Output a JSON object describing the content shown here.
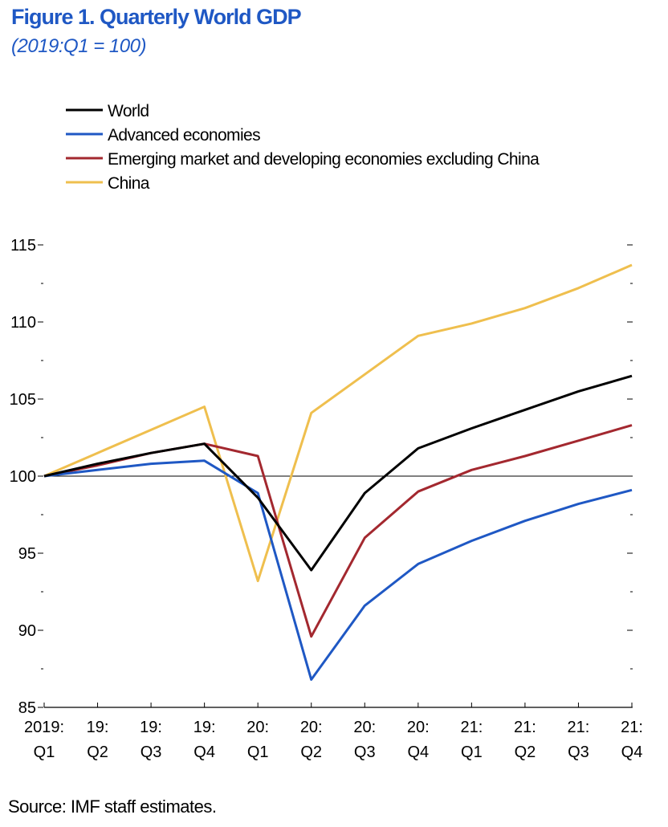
{
  "header": {
    "title": "Figure 1. Quarterly World GDP",
    "subtitle": "(2019:Q1 = 100)"
  },
  "footer": {
    "source": "Source: IMF staff estimates."
  },
  "chart_data": {
    "type": "line",
    "title": "Figure 1. Quarterly World GDP",
    "subtitle": "(2019:Q1 = 100)",
    "xlabel": "",
    "ylabel": "",
    "ylim": [
      85,
      115
    ],
    "yticks": [
      85,
      90,
      95,
      100,
      105,
      110,
      115
    ],
    "grid": false,
    "reference_line": 100,
    "legend_position": "top-left",
    "categories": [
      [
        "2019:",
        "Q1"
      ],
      [
        "19:",
        "Q2"
      ],
      [
        "19:",
        "Q3"
      ],
      [
        "19:",
        "Q4"
      ],
      [
        "20:",
        "Q1"
      ],
      [
        "20:",
        "Q2"
      ],
      [
        "20:",
        "Q3"
      ],
      [
        "20:",
        "Q4"
      ],
      [
        "21:",
        "Q1"
      ],
      [
        "21:",
        "Q2"
      ],
      [
        "21:",
        "Q3"
      ],
      [
        "21:",
        "Q4"
      ]
    ],
    "series": [
      {
        "name": "World",
        "color": "#000000",
        "values": [
          100,
          100.8,
          101.5,
          102.1,
          98.6,
          93.9,
          98.9,
          101.8,
          103.1,
          104.3,
          105.5,
          106.5
        ]
      },
      {
        "name": "Advanced economies",
        "color": "#1f58c4",
        "values": [
          100,
          100.4,
          100.8,
          101.0,
          98.9,
          86.8,
          91.6,
          94.3,
          95.8,
          97.1,
          98.2,
          99.1
        ]
      },
      {
        "name": "Emerging market and developing economies excluding China",
        "color": "#a3282f",
        "values": [
          100,
          100.7,
          101.5,
          102.1,
          101.3,
          89.6,
          96.0,
          99.0,
          100.4,
          101.3,
          102.3,
          103.3
        ]
      },
      {
        "name": "China",
        "color": "#efbf4e",
        "values": [
          100,
          101.5,
          103.0,
          104.5,
          93.2,
          104.1,
          106.6,
          109.1,
          109.9,
          110.9,
          112.2,
          113.7
        ]
      }
    ]
  }
}
